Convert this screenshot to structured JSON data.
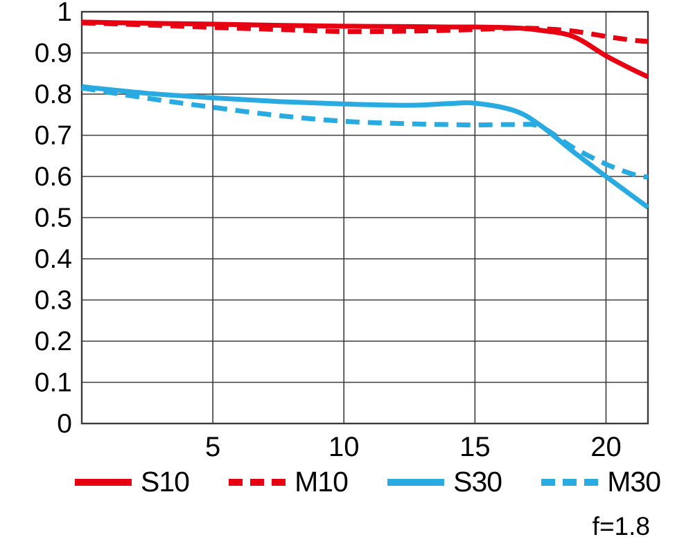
{
  "chart": {
    "aperture_label": "f=1.8",
    "colors": {
      "red": "#e60012",
      "blue": "#29abe2",
      "grid": "#3a3a3a",
      "axis": "#3a3a3a",
      "text": "#000000",
      "background": "#ffffff"
    }
  },
  "chart_data": {
    "type": "line",
    "title": "",
    "subtitle": "",
    "xlabel": "",
    "ylabel": "",
    "xlim": [
      0,
      21.6
    ],
    "ylim": [
      0,
      1
    ],
    "grid": true,
    "legend_position": "bottom",
    "annotation": "f=1.8",
    "x_tick_values": [
      5,
      10,
      15,
      20
    ],
    "x_tick_labels": [
      "5",
      "10",
      "15",
      "20"
    ],
    "y_tick_values": [
      0,
      0.1,
      0.2,
      0.3,
      0.4,
      0.5,
      0.6,
      0.7,
      0.8,
      0.9,
      1
    ],
    "y_tick_labels": [
      "0",
      "0.1",
      "0.2",
      "0.3",
      "0.4",
      "0.5",
      "0.6",
      "0.7",
      "0.8",
      "0.9",
      "1"
    ],
    "x": [
      0,
      2.5,
      5,
      7.5,
      10,
      12.5,
      14,
      15,
      16.5,
      17.5,
      18.75,
      20,
      21,
      21.6
    ],
    "series": [
      {
        "name": "S10",
        "color": "#e60012",
        "style": "solid",
        "values": [
          0.975,
          0.972,
          0.97,
          0.967,
          0.965,
          0.964,
          0.963,
          0.963,
          0.961,
          0.955,
          0.94,
          0.893,
          0.86,
          0.842
        ]
      },
      {
        "name": "M10",
        "color": "#e60012",
        "style": "dashed",
        "values": [
          0.973,
          0.968,
          0.962,
          0.957,
          0.952,
          0.953,
          0.955,
          0.957,
          0.96,
          0.959,
          0.953,
          0.94,
          0.931,
          0.928
        ]
      },
      {
        "name": "S30",
        "color": "#29abe2",
        "style": "solid",
        "values": [
          0.818,
          0.802,
          0.791,
          0.782,
          0.776,
          0.773,
          0.777,
          0.778,
          0.76,
          0.724,
          0.66,
          0.6,
          0.553,
          0.525
        ]
      },
      {
        "name": "M30",
        "color": "#29abe2",
        "style": "dashed",
        "values": [
          0.815,
          0.79,
          0.768,
          0.748,
          0.734,
          0.728,
          0.726,
          0.725,
          0.726,
          0.721,
          0.67,
          0.63,
          0.606,
          0.598
        ]
      }
    ]
  }
}
